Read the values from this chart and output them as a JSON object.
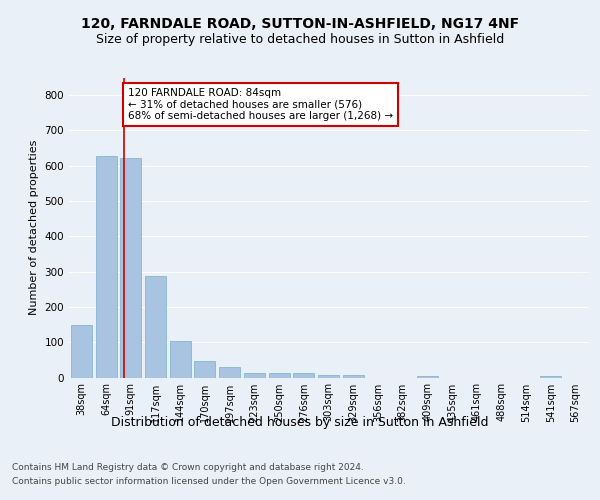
{
  "title1": "120, FARNDALE ROAD, SUTTON-IN-ASHFIELD, NG17 4NF",
  "title2": "Size of property relative to detached houses in Sutton in Ashfield",
  "xlabel": "Distribution of detached houses by size in Sutton in Ashfield",
  "ylabel": "Number of detached properties",
  "footer1": "Contains HM Land Registry data © Crown copyright and database right 2024.",
  "footer2": "Contains public sector information licensed under the Open Government Licence v3.0.",
  "categories": [
    "38sqm",
    "64sqm",
    "91sqm",
    "117sqm",
    "144sqm",
    "170sqm",
    "197sqm",
    "223sqm",
    "250sqm",
    "276sqm",
    "303sqm",
    "329sqm",
    "356sqm",
    "382sqm",
    "409sqm",
    "435sqm",
    "461sqm",
    "488sqm",
    "514sqm",
    "541sqm",
    "567sqm"
  ],
  "values": [
    148,
    628,
    622,
    288,
    103,
    48,
    31,
    12,
    12,
    12,
    7,
    7,
    0,
    0,
    5,
    0,
    0,
    0,
    0,
    5,
    0
  ],
  "bar_color": "#a8c4e0",
  "bar_edge_color": "#7aafc8",
  "annotation_text": "120 FARNDALE ROAD: 84sqm\n← 31% of detached houses are smaller (576)\n68% of semi-detached houses are larger (1,268) →",
  "annotation_box_color": "#ffffff",
  "annotation_line_color": "#cc0000",
  "annotation_box_edge_color": "#cc0000",
  "ylim": [
    0,
    850
  ],
  "background_color": "#eaf0f8",
  "plot_bg_color": "#eaf0f8",
  "grid_color": "#ffffff",
  "title1_fontsize": 10,
  "title2_fontsize": 9,
  "xlabel_fontsize": 9,
  "ylabel_fontsize": 8,
  "tick_fontsize": 7,
  "footer_fontsize": 6.5
}
